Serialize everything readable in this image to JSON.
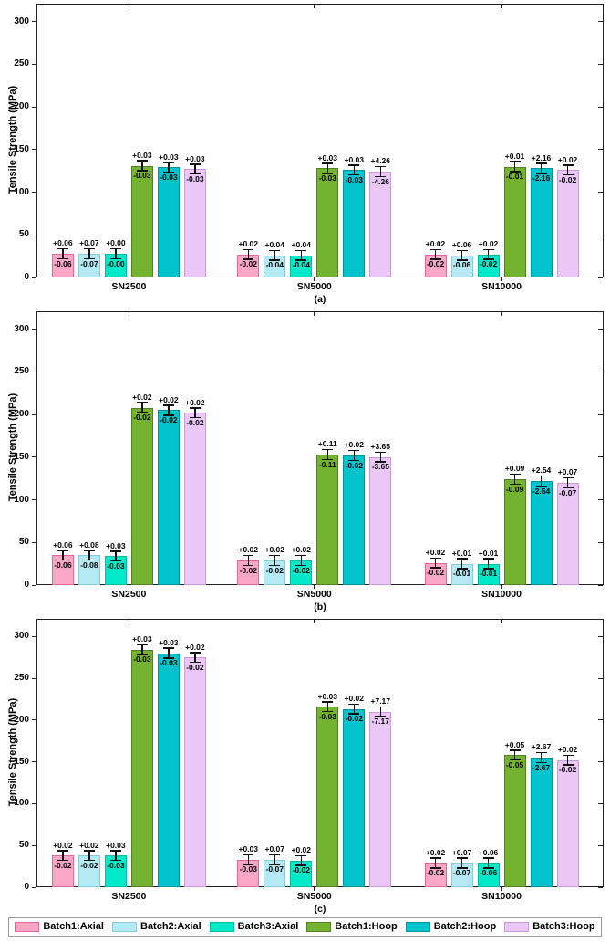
{
  "figure": {
    "background": "#ffffff",
    "axis_color": "#222222",
    "ylabel": "Tensile Strength (MPa)",
    "categories": [
      "SN2500",
      "SN5000",
      "SN10000"
    ],
    "yticks": [
      0,
      50,
      100,
      150,
      200,
      250,
      300
    ]
  },
  "legend": {
    "position": "bottom",
    "items": [
      {
        "label": "Batch1:Axial",
        "fill": "#F9A7C4",
        "edge": "#E2679E"
      },
      {
        "label": "Batch2:Axial",
        "fill": "#B5E9F3",
        "edge": "#86CCDE"
      },
      {
        "label": "Batch3:Axial",
        "fill": "#00E9C9",
        "edge": "#00BBA2"
      },
      {
        "label": "Batch1:Hoop",
        "fill": "#74B32F",
        "edge": "#557F22"
      },
      {
        "label": "Batch2:Hoop",
        "fill": "#00C3CB",
        "edge": "#00939A"
      },
      {
        "label": "Batch3:Hoop",
        "fill": "#EBC7F8",
        "edge": "#C79BDD"
      }
    ]
  },
  "chart_data": [
    {
      "type": "bar",
      "panel_label": "(a)",
      "ylabel": "Tensile Strength (MPa)",
      "ylim": [
        0,
        321
      ],
      "yticks": [
        0,
        50,
        100,
        150,
        200,
        250,
        300
      ],
      "grid": false,
      "error_halfwidth_mpa": 5,
      "categories": [
        "SN2500",
        "SN5000",
        "SN10000"
      ],
      "series": [
        {
          "name": "Batch1:Axial",
          "values": [
            28,
            27,
            27
          ],
          "labels_plus": [
            "+0.06",
            "+0.02",
            "+0.02"
          ],
          "labels_minus": [
            "-0.06",
            "-0.02",
            "-0.02"
          ]
        },
        {
          "name": "Batch2:Axial",
          "values": [
            28,
            26,
            26
          ],
          "labels_plus": [
            "+0.07",
            "+0.04",
            "+0.06"
          ],
          "labels_minus": [
            "-0.07",
            "-0.04",
            "-0.06"
          ]
        },
        {
          "name": "Batch3:Axial",
          "values": [
            28,
            26,
            27
          ],
          "labels_plus": [
            "+0.00",
            "+0.04",
            "+0.02"
          ],
          "labels_minus": [
            "-0.00",
            "-0.04",
            "-0.02"
          ]
        },
        {
          "name": "Batch1:Hoop",
          "values": [
            131,
            128,
            130
          ],
          "labels_plus": [
            "+0.03",
            "+0.03",
            "+0.01"
          ],
          "labels_minus": [
            "-0.03",
            "-0.03",
            "-0.01"
          ]
        },
        {
          "name": "Batch2:Hoop",
          "values": [
            129,
            126,
            128
          ],
          "labels_plus": [
            "+0.03",
            "+0.03",
            "+2.16"
          ],
          "labels_minus": [
            "-0.03",
            "-0.03",
            "-2.16"
          ]
        },
        {
          "name": "Batch3:Hoop",
          "values": [
            127,
            124,
            126
          ],
          "labels_plus": [
            "+0.03",
            "+4.26",
            "+0.02"
          ],
          "labels_minus": [
            "-0.03",
            "-4.26",
            "-0.02"
          ]
        }
      ]
    },
    {
      "type": "bar",
      "panel_label": "(b)",
      "ylabel": "Tensile Strength (MPa)",
      "ylim": [
        0,
        321
      ],
      "yticks": [
        0,
        50,
        100,
        150,
        200,
        250,
        300
      ],
      "grid": false,
      "error_halfwidth_mpa": 5,
      "categories": [
        "SN2500",
        "SN5000",
        "SN10000"
      ],
      "series": [
        {
          "name": "Batch1:Axial",
          "values": [
            35,
            29,
            26
          ],
          "labels_plus": [
            "+0.06",
            "+0.02",
            "+0.02"
          ],
          "labels_minus": [
            "-0.06",
            "-0.02",
            "-0.02"
          ]
        },
        {
          "name": "Batch2:Axial",
          "values": [
            35,
            29,
            25
          ],
          "labels_plus": [
            "+0.08",
            "+0.02",
            "+0.01"
          ],
          "labels_minus": [
            "-0.08",
            "-0.02",
            "-0.01"
          ]
        },
        {
          "name": "Batch3:Axial",
          "values": [
            34,
            29,
            25
          ],
          "labels_plus": [
            "+0.03",
            "+0.02",
            "+0.01"
          ],
          "labels_minus": [
            "-0.03",
            "-0.02",
            "-0.01"
          ]
        },
        {
          "name": "Batch1:Hoop",
          "values": [
            208,
            153,
            124
          ],
          "labels_plus": [
            "+0.02",
            "+0.11",
            "+0.09"
          ],
          "labels_minus": [
            "-0.02",
            "-0.11",
            "-0.09"
          ]
        },
        {
          "name": "Batch2:Hoop",
          "values": [
            205,
            152,
            122
          ],
          "labels_plus": [
            "+0.02",
            "+0.02",
            "+2.54"
          ],
          "labels_minus": [
            "-0.02",
            "-0.02",
            "-2.54"
          ]
        },
        {
          "name": "Batch3:Hoop",
          "values": [
            202,
            150,
            120
          ],
          "labels_plus": [
            "+0.02",
            "+3.65",
            "+0.07"
          ],
          "labels_minus": [
            "-0.02",
            "-3.65",
            "-0.07"
          ]
        }
      ]
    },
    {
      "type": "bar",
      "panel_label": "(c)",
      "ylabel": "Tensile Strength (MPa)",
      "ylim": [
        0,
        321
      ],
      "yticks": [
        0,
        50,
        100,
        150,
        200,
        250,
        300
      ],
      "grid": false,
      "error_halfwidth_mpa": 5,
      "categories": [
        "SN2500",
        "SN5000",
        "SN10000"
      ],
      "series": [
        {
          "name": "Batch1:Axial",
          "values": [
            38,
            33,
            29
          ],
          "labels_plus": [
            "+0.02",
            "+0.03",
            "+0.02"
          ],
          "labels_minus": [
            "-0.02",
            "-0.03",
            "-0.02"
          ]
        },
        {
          "name": "Batch2:Axial",
          "values": [
            38,
            33,
            29
          ],
          "labels_plus": [
            "+0.02",
            "+0.07",
            "+0.07"
          ],
          "labels_minus": [
            "-0.02",
            "-0.07",
            "-0.07"
          ]
        },
        {
          "name": "Batch3:Axial",
          "values": [
            38,
            32,
            29
          ],
          "labels_plus": [
            "+0.03",
            "+0.02",
            "+0.06"
          ],
          "labels_minus": [
            "-0.03",
            "-0.02",
            "-0.06"
          ]
        },
        {
          "name": "Batch1:Hoop",
          "values": [
            284,
            216,
            158
          ],
          "labels_plus": [
            "+0.03",
            "+0.03",
            "+0.05"
          ],
          "labels_minus": [
            "-0.03",
            "-0.03",
            "-0.05"
          ]
        },
        {
          "name": "Batch2:Hoop",
          "values": [
            280,
            213,
            155
          ],
          "labels_plus": [
            "+0.03",
            "+0.02",
            "+2.67"
          ],
          "labels_minus": [
            "-0.03",
            "-0.02",
            "-2.67"
          ]
        },
        {
          "name": "Batch3:Hoop",
          "values": [
            275,
            210,
            152
          ],
          "labels_plus": [
            "+0.02",
            "+7.17",
            "+0.02"
          ],
          "labels_minus": [
            "-0.02",
            "-7.17",
            "-0.02"
          ]
        }
      ]
    }
  ]
}
